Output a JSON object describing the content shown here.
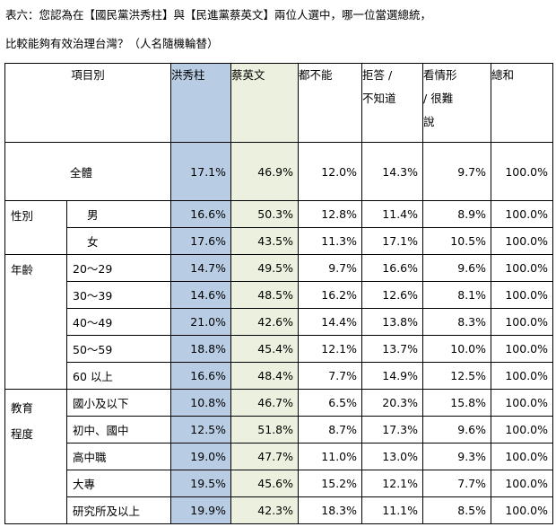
{
  "caption": {
    "line1": "表六：您認為在【國民黨洪秀柱】與【民進黨蔡英文】兩位人選中，哪一位當選總統，",
    "line2": "比較能夠有效治理台灣？（人名隨機輪替）"
  },
  "header": {
    "item": "項目別",
    "hung": "洪秀柱",
    "tsai": "蔡英文",
    "neither": "都不能",
    "refuse_line1": "拒答 /",
    "refuse_line2": "不知道",
    "depends_line1": "看情形",
    "depends_line2": "/ 很難",
    "depends_line3": "說",
    "total": "總和"
  },
  "highlight_colors": {
    "hung": "#b8cce4",
    "tsai": "#ebf1de"
  },
  "overall": {
    "label": "全體",
    "values": [
      "17.1%",
      "46.9%",
      "12.0%",
      "14.3%",
      "9.7%",
      "100.0%"
    ]
  },
  "groups": [
    {
      "name": "性別",
      "rows": [
        {
          "label": "男",
          "values": [
            "16.6%",
            "50.3%",
            "12.8%",
            "11.4%",
            "8.9%",
            "100.0%"
          ]
        },
        {
          "label": "女",
          "values": [
            "17.6%",
            "43.5%",
            "11.3%",
            "17.1%",
            "10.5%",
            "100.0%"
          ]
        }
      ]
    },
    {
      "name": "年齡",
      "rows": [
        {
          "label": "20～29",
          "values": [
            "14.7%",
            "49.5%",
            "9.7%",
            "16.6%",
            "9.6%",
            "100.0%"
          ]
        },
        {
          "label": "30～39",
          "values": [
            "14.6%",
            "48.5%",
            "16.2%",
            "12.6%",
            "8.1%",
            "100.0%"
          ]
        },
        {
          "label": "40～49",
          "values": [
            "21.0%",
            "42.6%",
            "14.4%",
            "13.8%",
            "8.3%",
            "100.0%"
          ]
        },
        {
          "label": "50～59",
          "values": [
            "18.8%",
            "45.4%",
            "12.1%",
            "13.7%",
            "10.0%",
            "100.0%"
          ]
        },
        {
          "label": "60 以上",
          "values": [
            "16.6%",
            "48.4%",
            "7.7%",
            "14.9%",
            "12.5%",
            "100.0%"
          ]
        }
      ]
    },
    {
      "name_line1": "教育",
      "name_line2": "程度",
      "rows": [
        {
          "label": "國小及以下",
          "values": [
            "10.8%",
            "46.7%",
            "6.5%",
            "20.3%",
            "15.8%",
            "100.0%"
          ]
        },
        {
          "label": "初中、國中",
          "values": [
            "12.5%",
            "51.8%",
            "8.7%",
            "17.3%",
            "9.6%",
            "100.0%"
          ]
        },
        {
          "label": "高中職",
          "values": [
            "19.0%",
            "47.7%",
            "11.0%",
            "13.0%",
            "9.3%",
            "100.0%"
          ]
        },
        {
          "label": "大專",
          "values": [
            "19.5%",
            "45.6%",
            "15.2%",
            "12.1%",
            "7.7%",
            "100.0%"
          ]
        },
        {
          "label": "研究所及以上",
          "values": [
            "19.9%",
            "42.3%",
            "18.3%",
            "11.1%",
            "8.5%",
            "100.0%"
          ]
        }
      ]
    }
  ]
}
